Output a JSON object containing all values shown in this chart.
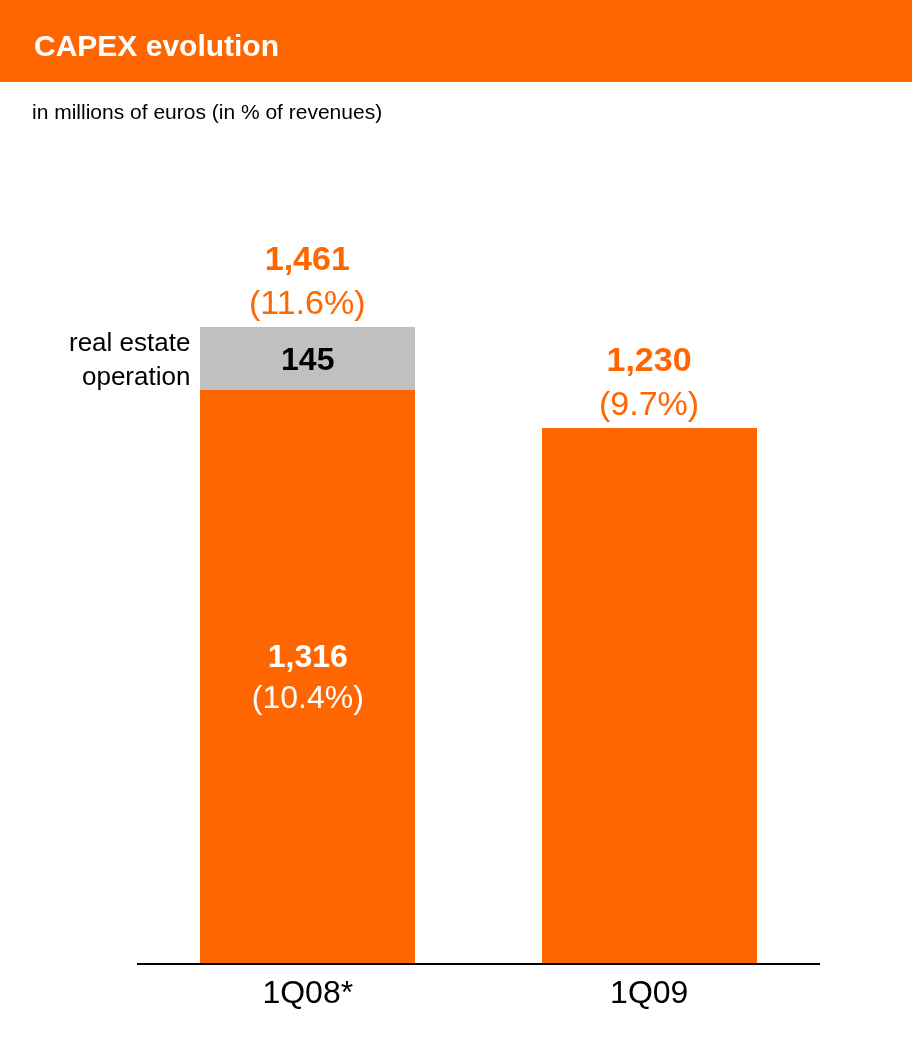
{
  "chart_data": {
    "type": "bar",
    "title": "CAPEX evolution",
    "subtitle": "in millions of euros (in % of revenues)",
    "categories": [
      "1Q08*",
      "1Q09"
    ],
    "stacked": true,
    "legend": false,
    "series": [
      {
        "color": "#ff6600",
        "values": [
          1316,
          1230
        ],
        "value_labels": [
          "1,316\n(10.4%)",
          null
        ]
      },
      {
        "name": "real estate\noperation",
        "color": "#c0c0c0",
        "values": [
          145,
          null
        ],
        "value_labels": [
          "145",
          null
        ]
      }
    ],
    "totals": [
      "1,461\n(11.6%)",
      "1,230\n(9.7%)"
    ]
  }
}
